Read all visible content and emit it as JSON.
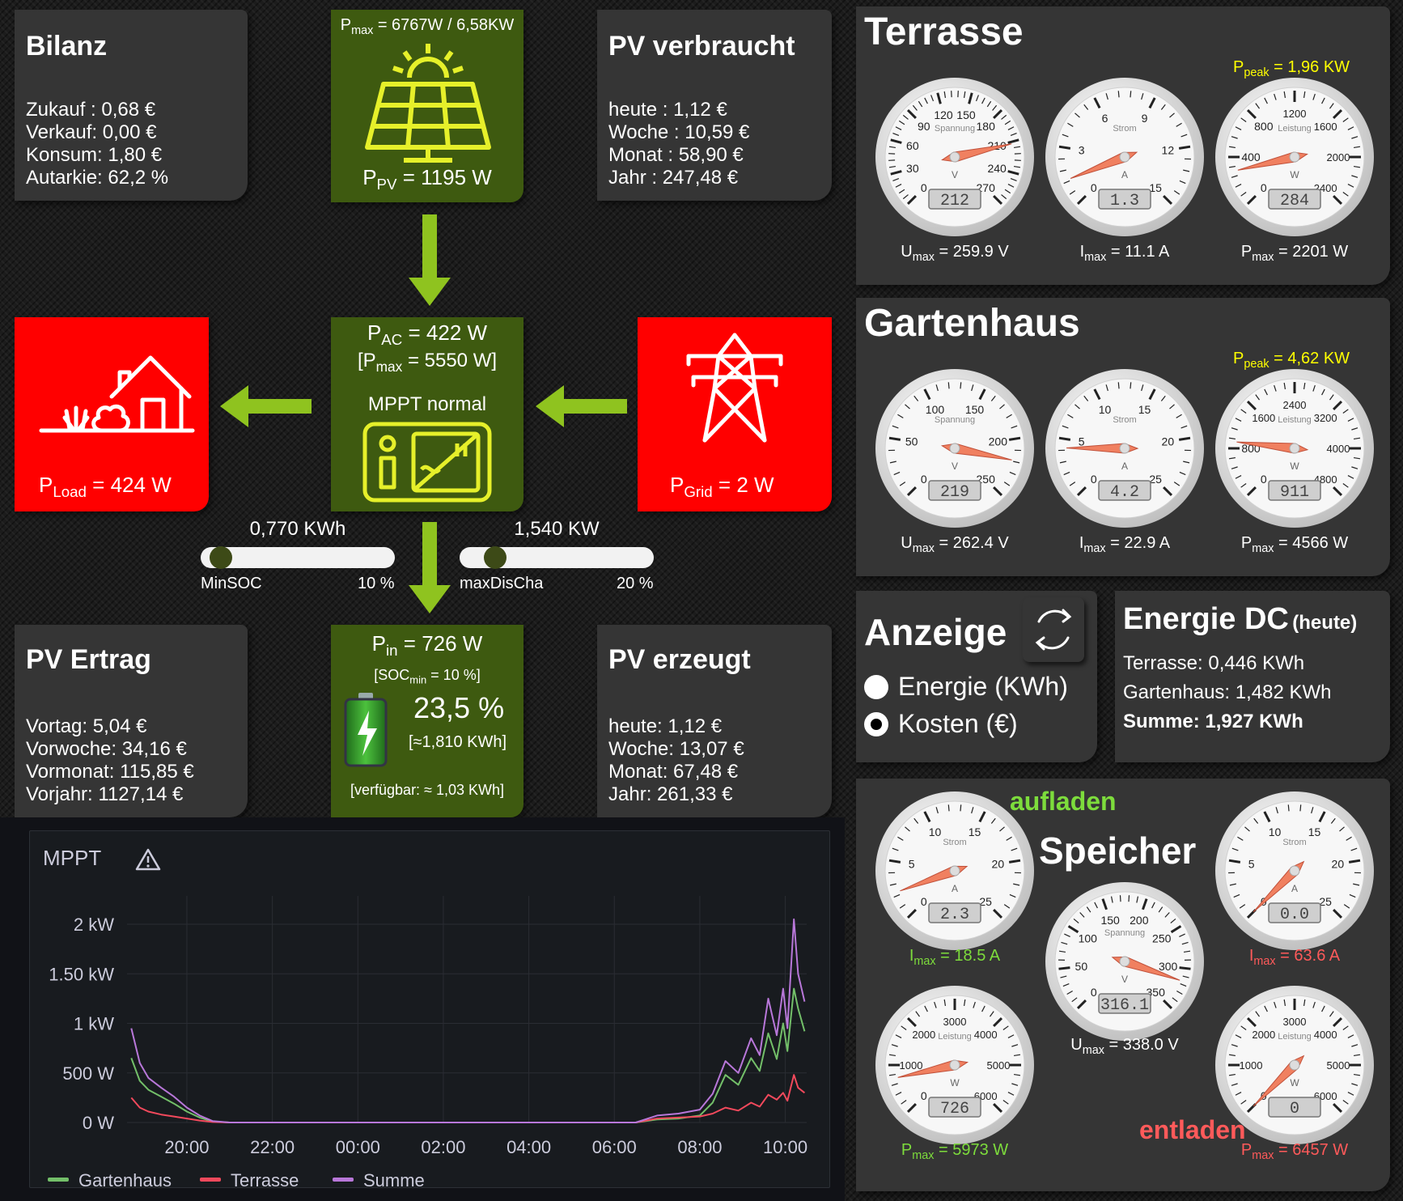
{
  "bilanz": {
    "title": "Bilanz",
    "lines": [
      "Zukauf : 0,68 €",
      "Verkauf: 0,00 €",
      "Konsum: 1,80 €",
      "Autarkie: 62,2 %"
    ]
  },
  "pv_panel": {
    "pmax_label": "P",
    "pmax_sub": "max",
    "pmax_value": " = 6767W / 6,58KW",
    "ppv_label": "P",
    "ppv_sub": "PV",
    "ppv_value": " = 1195 W"
  },
  "pv_verbraucht": {
    "title": "PV verbraucht",
    "lines": [
      "heute : 1,12 €",
      "Woche : 10,59 €",
      "Monat : 58,90 €",
      "Jahr : 247,48 €"
    ]
  },
  "load": {
    "label": "P",
    "sub": "Load",
    "value": " = 424 W"
  },
  "grid": {
    "label": "P",
    "sub": "Grid",
    "value": " = 2 W"
  },
  "inverter": {
    "pac_label": "P",
    "pac_sub": "AC",
    "pac_value": " = 422 W",
    "pmax_label": "[P",
    "pmax_sub": "max",
    "pmax_value": " = 5550 W]",
    "mode": "MPPT normal"
  },
  "sliders": {
    "min_soc": {
      "value_text": "0,770 KWh",
      "name": "MinSOC",
      "percent_text": "10 %",
      "fraction": 0.05
    },
    "max_dischg": {
      "value_text": "1,540 KW",
      "name": "maxDisCha",
      "percent_text": "20 %",
      "fraction": 0.14
    }
  },
  "pv_ertrag": {
    "title": "PV Ertrag",
    "lines": [
      "Vortag: 5,04 €",
      "Vorwoche: 34,16 €",
      "Vormonat: 115,85 €",
      "Vorjahr: 1127,14 €"
    ]
  },
  "battery": {
    "pin_label": "P",
    "pin_sub": "in",
    "pin_value": " = 726 W",
    "soc_min_label": "[SOC",
    "soc_min_sub": "min",
    "soc_min_value": " = 10 %]",
    "soc": "23,5 %",
    "energy": "[≈1,810 KWh]",
    "available": "[verfügbar: ≈ 1,03 KWh]"
  },
  "pv_erzeugt": {
    "title": "PV erzeugt",
    "lines": [
      "heute: 1,12 €",
      "Woche: 13,07 €",
      "Monat: 67,48 €",
      "Jahr: 261,33 €"
    ]
  },
  "mppt_chart": {
    "title": "MPPT",
    "warning_icon": "warning-triangle-icon"
  },
  "chart_data": {
    "type": "line",
    "title": "MPPT",
    "x_ticks": [
      "20:00",
      "22:00",
      "00:00",
      "02:00",
      "04:00",
      "06:00",
      "08:00",
      "10:00"
    ],
    "y_ticks": [
      "0 W",
      "500 W",
      "1 kW",
      "1.50 kW",
      "2 kW"
    ],
    "ylim": [
      0,
      2200
    ],
    "x_range_hours": [
      18.6,
      10.5
    ],
    "series": [
      {
        "name": "Gartenhaus",
        "color": "#73bf69",
        "x": [
          18.7,
          18.9,
          19.1,
          19.4,
          19.7,
          20.0,
          20.3,
          20.6,
          21.0,
          6.5,
          7.0,
          7.5,
          8.0,
          8.3,
          8.6,
          8.9,
          9.2,
          9.4,
          9.6,
          9.8,
          9.95,
          10.05,
          10.2,
          10.3,
          10.45
        ],
        "y": [
          650,
          420,
          330,
          260,
          190,
          110,
          50,
          10,
          0,
          0,
          30,
          40,
          70,
          200,
          480,
          380,
          650,
          520,
          900,
          640,
          1000,
          720,
          1350,
          1150,
          920
        ]
      },
      {
        "name": "Terrasse",
        "color": "#f2495c",
        "x": [
          18.7,
          18.9,
          19.1,
          19.4,
          19.7,
          20.0,
          20.3,
          20.6,
          21.0,
          6.5,
          7.0,
          7.5,
          8.0,
          8.3,
          8.6,
          8.9,
          9.2,
          9.4,
          9.6,
          9.8,
          9.95,
          10.05,
          10.2,
          10.3,
          10.45
        ],
        "y": [
          250,
          150,
          110,
          80,
          60,
          40,
          20,
          5,
          0,
          0,
          40,
          50,
          60,
          90,
          150,
          120,
          200,
          160,
          280,
          230,
          300,
          220,
          480,
          350,
          300
        ]
      },
      {
        "name": "Summe",
        "color": "#b877d9",
        "x": [
          18.7,
          18.9,
          19.1,
          19.4,
          19.7,
          20.0,
          20.3,
          20.6,
          21.0,
          6.5,
          7.0,
          7.5,
          8.0,
          8.3,
          8.6,
          8.9,
          9.2,
          9.4,
          9.6,
          9.8,
          9.95,
          10.05,
          10.2,
          10.3,
          10.45
        ],
        "y": [
          950,
          600,
          450,
          350,
          260,
          150,
          70,
          15,
          0,
          0,
          70,
          90,
          130,
          290,
          620,
          500,
          850,
          680,
          1250,
          880,
          1350,
          950,
          2050,
          1500,
          1220
        ]
      }
    ]
  },
  "terrasse": {
    "title": "Terrasse",
    "peak": {
      "label": "P",
      "sub": "peak",
      "value": " = 1,96 KW"
    },
    "gauges": [
      {
        "unit": "V",
        "name": "Spannung",
        "ticks": [
          "0",
          "30",
          "60",
          "90",
          "120",
          "150",
          "180",
          "210",
          "240",
          "270"
        ],
        "min": 0,
        "max": 270,
        "value": 212,
        "display": "212",
        "cap_label": "U",
        "cap_sub": "max",
        "cap_value": " = 259.9 V"
      },
      {
        "unit": "A",
        "name": "Strom",
        "ticks": [
          "0",
          "3",
          "6",
          "9",
          "12",
          "15"
        ],
        "min": 0,
        "max": 15,
        "value": 1.3,
        "display": "1.3",
        "cap_label": "I",
        "cap_sub": "max",
        "cap_value": " = 11.1 A"
      },
      {
        "unit": "W",
        "name": "Leistung",
        "ticks": [
          "0",
          "400",
          "800",
          "1200",
          "1600",
          "2000",
          "2400"
        ],
        "min": 0,
        "max": 2400,
        "value": 284,
        "display": "284",
        "cap_label": "P",
        "cap_sub": "max",
        "cap_value": " = 2201 W"
      }
    ]
  },
  "gartenhaus": {
    "title": "Gartenhaus",
    "peak": {
      "label": "P",
      "sub": "peak",
      "value": " = 4,62 KW"
    },
    "gauges": [
      {
        "unit": "V",
        "name": "Spannung",
        "ticks": [
          "0",
          "50",
          "100",
          "150",
          "200",
          "250"
        ],
        "min": 0,
        "max": 250,
        "value": 219,
        "display": "219",
        "cap_label": "U",
        "cap_sub": "max",
        "cap_value": " = 262.4 V"
      },
      {
        "unit": "A",
        "name": "Strom",
        "ticks": [
          "0",
          "5",
          "10",
          "15",
          "20",
          "25"
        ],
        "min": 0,
        "max": 25,
        "value": 4.2,
        "display": "4.2",
        "cap_label": "I",
        "cap_sub": "max",
        "cap_value": " = 22.9 A"
      },
      {
        "unit": "W",
        "name": "Leistung",
        "ticks": [
          "0",
          "800",
          "1600",
          "2400",
          "3200",
          "4000",
          "4800"
        ],
        "min": 0,
        "max": 4800,
        "value": 911,
        "display": "911",
        "cap_label": "P",
        "cap_sub": "max",
        "cap_value": " = 4566 W"
      }
    ]
  },
  "anzeige": {
    "title": "Anzeige",
    "refresh_icon": "refresh-icon",
    "options": [
      {
        "label": "Energie (KWh)",
        "selected": false
      },
      {
        "label": "Kosten (€)",
        "selected": true
      }
    ]
  },
  "energie_dc": {
    "title": "Energie DC",
    "subtitle": "(heute)",
    "lines": [
      "Terrasse: 0,446 KWh",
      "Gartenhaus: 1,482 KWh"
    ],
    "sum": "Summe: 1,927 KWh"
  },
  "speicher": {
    "title": "Speicher",
    "charge_label": "aufladen",
    "discharge_label": "entladen",
    "gauges": {
      "charge_current": {
        "unit": "A",
        "name": "Strom",
        "ticks": [
          "0",
          "5",
          "10",
          "15",
          "20",
          "25"
        ],
        "min": 0,
        "max": 25,
        "value": 2.3,
        "display": "2.3",
        "cap_label": "I",
        "cap_sub": "max",
        "cap_value": " = 18.5 A"
      },
      "discharge_current": {
        "unit": "A",
        "name": "Strom",
        "ticks": [
          "0",
          "5",
          "10",
          "15",
          "20",
          "25"
        ],
        "min": 0,
        "max": 25,
        "value": 0.0,
        "display": "0.0",
        "cap_label": "I",
        "cap_sub": "max",
        "cap_value": " = 63.6 A"
      },
      "voltage": {
        "unit": "V",
        "name": "Spannung",
        "ticks": [
          "0",
          "50",
          "100",
          "150",
          "200",
          "250",
          "300",
          "350"
        ],
        "min": 0,
        "max": 350,
        "value": 316.1,
        "display": "316.1",
        "cap_label": "U",
        "cap_sub": "max",
        "cap_value": " = 338.0 V"
      },
      "charge_power": {
        "unit": "W",
        "name": "Leistung",
        "ticks": [
          "0",
          "1000",
          "2000",
          "3000",
          "4000",
          "5000",
          "6000"
        ],
        "min": 0,
        "max": 6000,
        "value": 726,
        "display": "726",
        "cap_label": "P",
        "cap_sub": "max",
        "cap_value": " = 5973 W"
      },
      "discharge_power": {
        "unit": "W",
        "name": "Leistung",
        "ticks": [
          "0",
          "1000",
          "2000",
          "3000",
          "4000",
          "5000",
          "6000"
        ],
        "min": 0,
        "max": 6000,
        "value": 0,
        "display": "0",
        "cap_label": "P",
        "cap_sub": "max",
        "cap_value": " = 6457 W"
      }
    }
  },
  "colors": {
    "green_box": "#3e5a10",
    "arrow": "#8fc31f",
    "icon_yellow": "#e6f02a",
    "alert_red": "#ff0000",
    "charge_text": "#7ddc3c",
    "discharge_text": "#ff5a5a",
    "peak_text": "#ffff00"
  }
}
